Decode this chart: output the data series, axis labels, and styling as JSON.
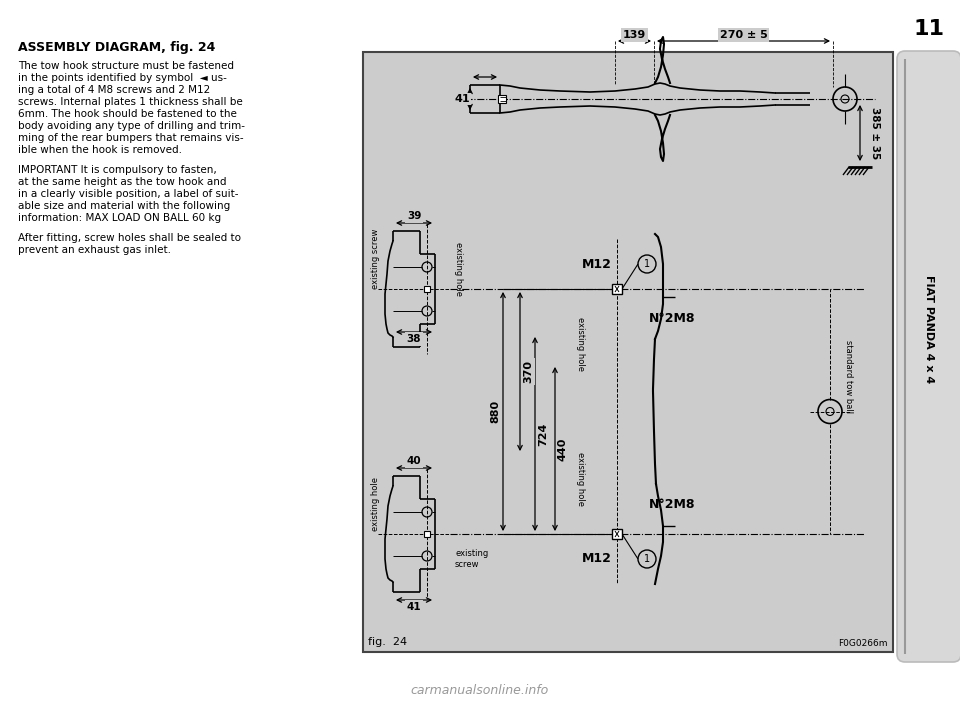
{
  "bg_color": "#e8e8e8",
  "page_bg": "#ffffff",
  "diagram_bg": "#cccccc",
  "title": "ASSEMBLY DIAGRAM, fig. 24",
  "body_text": [
    "The tow hook structure must be fastened",
    "in the points identified by symbol  ◄ us-",
    "ing a total of 4 M8 screws and 2 M12",
    "screws. Internal plates 1 thickness shall be",
    "6mm. The hook should be fastened to the",
    "body avoiding any type of drilling and trim-",
    "ming of the rear bumpers that remains vis-",
    "ible when the hook is removed.",
    "",
    "IMPORTANT It is compulsory to fasten,",
    "at the same height as the tow hook and",
    "in a clearly visible position, a label of suit-",
    "able size and material with the following",
    "information: MAX LOAD ON BALL 60 kg",
    "",
    "After fitting, screw holes shall be sealed to",
    "prevent an exhaust gas inlet."
  ],
  "fig_label": "fig.  24",
  "fig_code": "F0G0266m",
  "side_text": "FIAT PANDA 4 x 4",
  "page_num": "11"
}
